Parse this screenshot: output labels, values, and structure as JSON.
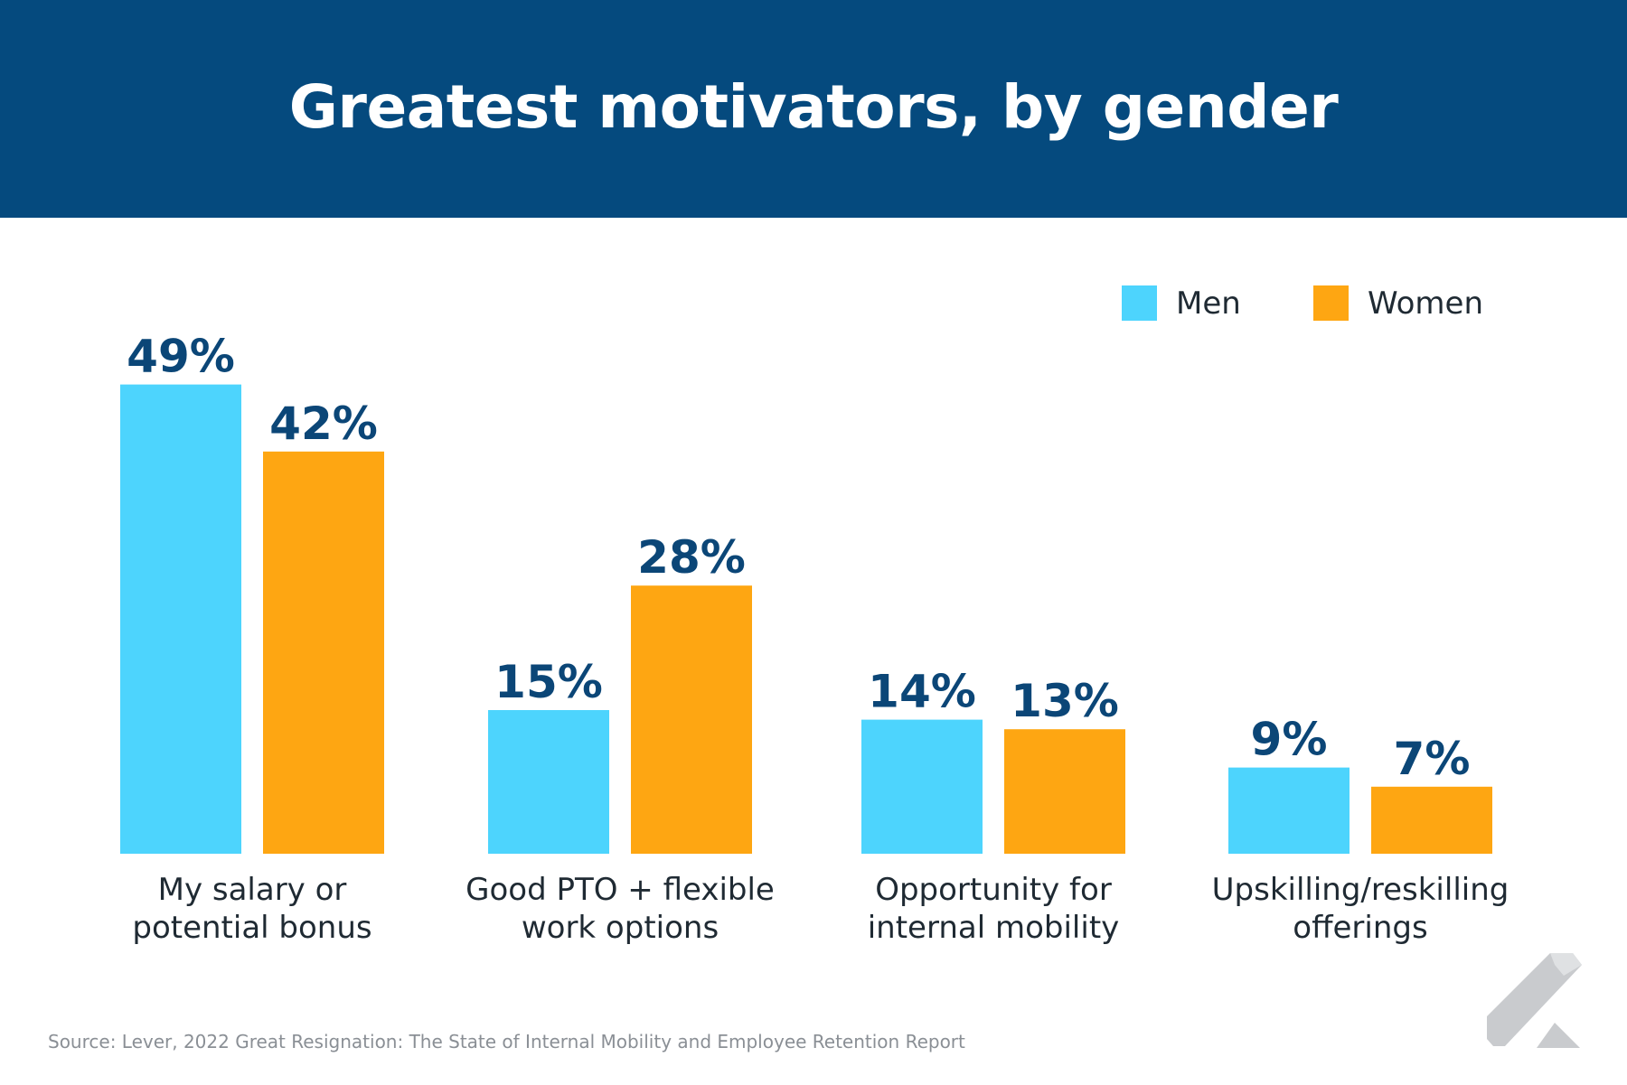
{
  "header": {
    "title": "Greatest motivators, by gender"
  },
  "chart_data": {
    "type": "bar",
    "title": "Greatest motivators, by gender",
    "categories": [
      [
        "My salary or",
        "potential bonus"
      ],
      [
        "Good PTO + flexible",
        "work options"
      ],
      [
        "Opportunity for",
        "internal mobility"
      ],
      [
        "Upskilling/reskilling",
        "offerings"
      ]
    ],
    "series": [
      {
        "name": "Men",
        "color": "#4dd4fd",
        "values": [
          49,
          15,
          14,
          9
        ],
        "labels": [
          "49%",
          "15%",
          "14%",
          "9%"
        ]
      },
      {
        "name": "Women",
        "color": "#fea612",
        "values": [
          42,
          28,
          13,
          7
        ],
        "labels": [
          "42%",
          "28%",
          "13%",
          "7%"
        ]
      }
    ],
    "xlabel": "",
    "ylabel": "",
    "ylim": [
      0,
      50
    ],
    "grid": false,
    "legend": "top-right"
  },
  "footer": {
    "source": "Source: Lever, 2022 Great Resignation: The State of Internal Mobility and Employee Retention Report"
  },
  "logo": {
    "icon": "lever-logo-icon",
    "colors": [
      "#c9cbce",
      "#dfe1e3"
    ]
  }
}
